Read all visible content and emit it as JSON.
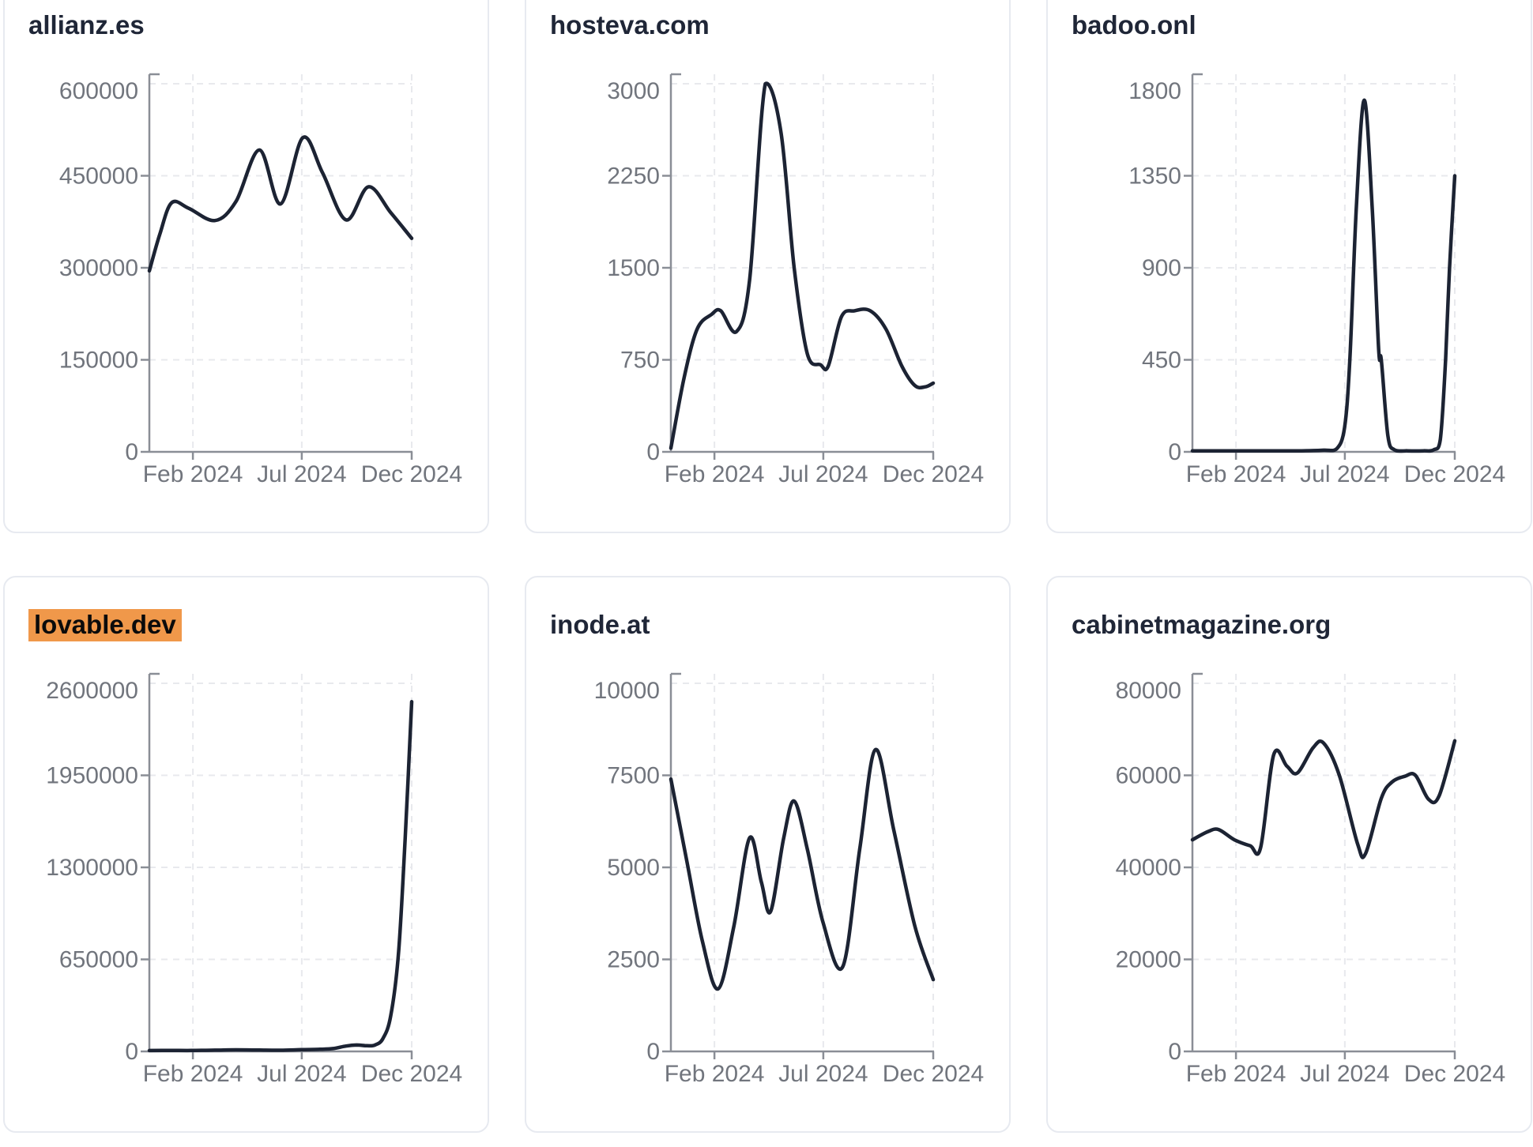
{
  "colors": {
    "page_bg": "#ffffff",
    "card_border": "#e7eaf0",
    "title": "#1f2637",
    "line": "#1c2333",
    "axis": "#8a8e96",
    "grid": "#e8e9ed",
    "tick_label": "#71757d",
    "highlight": "#f0984a"
  },
  "chart_data": [
    {
      "type": "line",
      "title": "allianz.es",
      "highlighted": false,
      "legend": "none",
      "grid": "dashed",
      "x_tick_labels": [
        "Feb 2024",
        "Jul 2024",
        "Dec 2024"
      ],
      "y_ticks": [
        0,
        150000,
        300000,
        450000,
        600000
      ],
      "y_max": 600000,
      "points": [
        [
          0,
          295000
        ],
        [
          0.04,
          355000
        ],
        [
          0.085,
          406000
        ],
        [
          0.15,
          397000
        ],
        [
          0.25,
          377000
        ],
        [
          0.33,
          408000
        ],
        [
          0.42,
          492000
        ],
        [
          0.5,
          404000
        ],
        [
          0.585,
          512000
        ],
        [
          0.66,
          455000
        ],
        [
          0.75,
          378000
        ],
        [
          0.835,
          432000
        ],
        [
          0.92,
          390000
        ],
        [
          1,
          348000
        ]
      ]
    },
    {
      "type": "line",
      "title": "hosteva.com",
      "highlighted": false,
      "legend": "none",
      "grid": "dashed",
      "x_tick_labels": [
        "Feb 2024",
        "Jul 2024",
        "Dec 2024"
      ],
      "y_ticks": [
        0,
        750,
        1500,
        2250,
        3000
      ],
      "y_max": 3000,
      "points": [
        [
          0,
          30
        ],
        [
          0.05,
          600
        ],
        [
          0.1,
          1000
        ],
        [
          0.155,
          1120
        ],
        [
          0.19,
          1150
        ],
        [
          0.25,
          980
        ],
        [
          0.3,
          1400
        ],
        [
          0.36,
          3000
        ],
        [
          0.42,
          2600
        ],
        [
          0.47,
          1500
        ],
        [
          0.52,
          800
        ],
        [
          0.57,
          710
        ],
        [
          0.6,
          700
        ],
        [
          0.65,
          1100
        ],
        [
          0.7,
          1150
        ],
        [
          0.76,
          1150
        ],
        [
          0.82,
          1000
        ],
        [
          0.88,
          700
        ],
        [
          0.93,
          540
        ],
        [
          0.97,
          530
        ],
        [
          1,
          560
        ]
      ]
    },
    {
      "type": "line",
      "title": "badoo.onl",
      "highlighted": false,
      "legend": "none",
      "grid": "dashed",
      "x_tick_labels": [
        "Feb 2024",
        "Jul 2024",
        "Dec 2024"
      ],
      "y_ticks": [
        0,
        450,
        900,
        1350,
        1800
      ],
      "y_max": 1800,
      "points": [
        [
          0,
          5
        ],
        [
          0.1,
          5
        ],
        [
          0.2,
          5
        ],
        [
          0.3,
          5
        ],
        [
          0.4,
          5
        ],
        [
          0.5,
          8
        ],
        [
          0.55,
          15
        ],
        [
          0.58,
          120
        ],
        [
          0.6,
          450
        ],
        [
          0.625,
          1200
        ],
        [
          0.655,
          1720
        ],
        [
          0.685,
          1200
        ],
        [
          0.71,
          500
        ],
        [
          0.72,
          450
        ],
        [
          0.745,
          80
        ],
        [
          0.77,
          10
        ],
        [
          0.82,
          5
        ],
        [
          0.88,
          5
        ],
        [
          0.92,
          10
        ],
        [
          0.945,
          60
        ],
        [
          0.965,
          450
        ],
        [
          0.98,
          900
        ],
        [
          1,
          1350
        ]
      ]
    },
    {
      "type": "line",
      "title": "lovable.dev",
      "highlighted": true,
      "legend": "none",
      "grid": "dashed",
      "x_tick_labels": [
        "Feb 2024",
        "Jul 2024",
        "Dec 2024"
      ],
      "y_ticks": [
        0,
        650000,
        1300000,
        1950000,
        2600000
      ],
      "y_max": 2600000,
      "points": [
        [
          0,
          6000
        ],
        [
          0.08,
          7000
        ],
        [
          0.16,
          6500
        ],
        [
          0.25,
          9000
        ],
        [
          0.33,
          11000
        ],
        [
          0.42,
          9500
        ],
        [
          0.5,
          8500
        ],
        [
          0.58,
          12000
        ],
        [
          0.65,
          15000
        ],
        [
          0.7,
          20000
        ],
        [
          0.75,
          38000
        ],
        [
          0.79,
          45000
        ],
        [
          0.83,
          40000
        ],
        [
          0.86,
          45000
        ],
        [
          0.89,
          90000
        ],
        [
          0.92,
          250000
        ],
        [
          0.95,
          700000
        ],
        [
          0.975,
          1500000
        ],
        [
          1,
          2470000
        ]
      ]
    },
    {
      "type": "line",
      "title": "inode.at",
      "highlighted": false,
      "legend": "none",
      "grid": "dashed",
      "x_tick_labels": [
        "Feb 2024",
        "Jul 2024",
        "Dec 2024"
      ],
      "y_ticks": [
        0,
        2500,
        5000,
        7500,
        10000
      ],
      "y_max": 10000,
      "points": [
        [
          0,
          7400
        ],
        [
          0.06,
          5200
        ],
        [
          0.12,
          3000
        ],
        [
          0.18,
          1700
        ],
        [
          0.24,
          3400
        ],
        [
          0.3,
          5800
        ],
        [
          0.345,
          4600
        ],
        [
          0.38,
          3800
        ],
        [
          0.43,
          5800
        ],
        [
          0.47,
          6800
        ],
        [
          0.52,
          5500
        ],
        [
          0.58,
          3500
        ],
        [
          0.655,
          2300
        ],
        [
          0.72,
          5500
        ],
        [
          0.78,
          8200
        ],
        [
          0.85,
          6000
        ],
        [
          0.93,
          3400
        ],
        [
          1,
          1950
        ]
      ]
    },
    {
      "type": "line",
      "title": "cabinetmagazine.org",
      "highlighted": false,
      "legend": "none",
      "grid": "dashed",
      "x_tick_labels": [
        "Feb 2024",
        "Jul 2024",
        "Dec 2024"
      ],
      "y_ticks": [
        0,
        20000,
        40000,
        60000,
        80000
      ],
      "y_max": 80000,
      "points": [
        [
          0,
          46000
        ],
        [
          0.06,
          47800
        ],
        [
          0.1,
          48200
        ],
        [
          0.16,
          46000
        ],
        [
          0.22,
          44700
        ],
        [
          0.26,
          44300
        ],
        [
          0.31,
          64500
        ],
        [
          0.36,
          62000
        ],
        [
          0.4,
          60500
        ],
        [
          0.46,
          66000
        ],
        [
          0.5,
          67000
        ],
        [
          0.56,
          60000
        ],
        [
          0.63,
          45000
        ],
        [
          0.66,
          43000
        ],
        [
          0.72,
          55000
        ],
        [
          0.76,
          58500
        ],
        [
          0.81,
          59800
        ],
        [
          0.85,
          60000
        ],
        [
          0.9,
          54800
        ],
        [
          0.94,
          55500
        ],
        [
          1,
          67500
        ]
      ]
    }
  ]
}
